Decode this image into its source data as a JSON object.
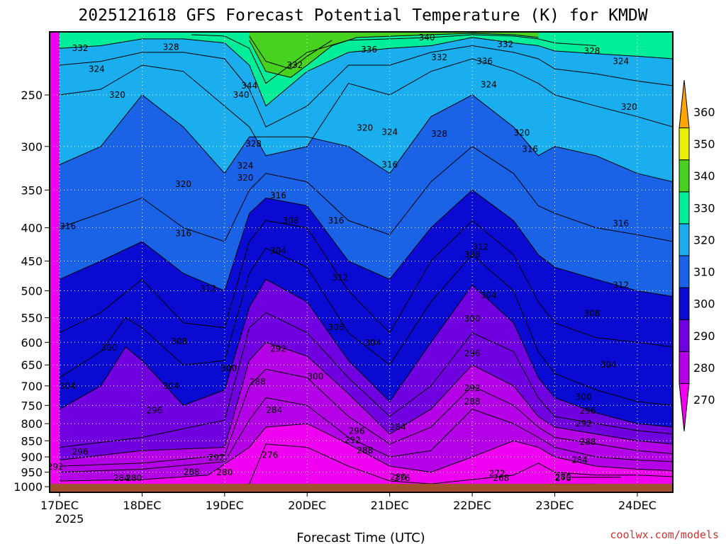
{
  "chart_data": {
    "type": "area",
    "title": "2025121618 GFS Forecast Potential Temperature (K) for KMDW",
    "xlabel": "Forecast Time (UTC)",
    "ylabel": "",
    "credit": "coolwx.com/models",
    "x_ticks": [
      "17DEC",
      "18DEC",
      "19DEC",
      "20DEC",
      "21DEC",
      "22DEC",
      "23DEC",
      "24DEC"
    ],
    "x_year": "2025",
    "x_range": [
      -0.12,
      7.43
    ],
    "y_ticks": [
      250,
      300,
      350,
      400,
      450,
      500,
      550,
      600,
      650,
      700,
      750,
      800,
      850,
      900,
      950,
      1000
    ],
    "y_range_hpa": [
      200,
      1020
    ],
    "y_scale": "log",
    "colorbar": {
      "levels": [
        270,
        280,
        290,
        300,
        310,
        320,
        330,
        340,
        350,
        360
      ],
      "colors": [
        "#f000f0",
        "#b400e6",
        "#7000e0",
        "#0a0ad2",
        "#1a62e6",
        "#1aaeee",
        "#00ee99",
        "#46d21e",
        "#e6f000",
        "#ffa500"
      ],
      "units": "K"
    },
    "surface": {
      "pressure_hpa": 1000,
      "color": "#a0522d"
    },
    "series": [
      {
        "level": 268,
        "x": [
          5.9,
          6.5
        ],
        "y": [
          991,
          991
        ]
      },
      {
        "level": 272,
        "x": [
          6.2,
          6.8
        ],
        "y": [
          967,
          967
        ]
      },
      {
        "level": 276,
        "x": [
          0.0,
          1.0,
          2.0,
          2.3,
          2.5,
          3.0,
          3.5,
          4.0,
          4.5,
          5.0,
          5.5,
          5.8,
          6.0,
          6.5,
          7.0,
          7.43
        ],
        "y": [
          1000,
          1000,
          1000,
          990,
          860,
          870,
          930,
          980,
          990,
          975,
          960,
          920,
          950,
          960,
          960,
          965
        ]
      },
      {
        "level": 280,
        "x": [
          0.0,
          1.0,
          1.8,
          2.3,
          2.5,
          3.0,
          3.5,
          4.0,
          4.5,
          5.0,
          5.5,
          5.8,
          6.0,
          6.5,
          7.0,
          7.43
        ],
        "y": [
          980,
          975,
          960,
          870,
          810,
          800,
          860,
          930,
          950,
          900,
          850,
          870,
          900,
          930,
          940,
          945
        ]
      },
      {
        "level": 284,
        "x": [
          0.0,
          1.0,
          2.0,
          2.3,
          2.5,
          3.0,
          3.5,
          4.0,
          4.5,
          5.0,
          5.5,
          5.8,
          6.0,
          6.5,
          7.0,
          7.43
        ],
        "y": [
          950,
          940,
          915,
          790,
          730,
          750,
          840,
          900,
          880,
          760,
          800,
          840,
          870,
          900,
          910,
          915
        ]
      },
      {
        "level": 288,
        "x": [
          0.0,
          1.0,
          2.0,
          2.3,
          2.5,
          3.0,
          3.5,
          4.0,
          4.5,
          5.0,
          5.5,
          5.8,
          6.0,
          6.5,
          7.0,
          7.43
        ],
        "y": [
          930,
          920,
          895,
          700,
          660,
          680,
          780,
          860,
          810,
          700,
          750,
          810,
          840,
          860,
          880,
          890
        ]
      },
      {
        "level": 292,
        "x": [
          0.0,
          1.0,
          2.0,
          2.3,
          2.5,
          3.0,
          3.5,
          4.0,
          4.5,
          5.0,
          5.5,
          5.8,
          6.0,
          6.5,
          7.0,
          7.43
        ],
        "y": [
          910,
          880,
          870,
          640,
          600,
          630,
          720,
          830,
          760,
          650,
          700,
          780,
          810,
          830,
          850,
          860
        ]
      },
      {
        "level": 296,
        "x": [
          0.0,
          1.0,
          2.0,
          2.3,
          2.5,
          3.0,
          3.5,
          4.0,
          4.5,
          5.0,
          5.5,
          5.8,
          6.0,
          6.5,
          7.0,
          7.43
        ],
        "y": [
          870,
          840,
          790,
          570,
          540,
          580,
          680,
          780,
          700,
          580,
          620,
          730,
          780,
          800,
          820,
          830
        ]
      },
      {
        "level": 300,
        "x": [
          0.0,
          0.5,
          0.8,
          1.0,
          1.5,
          2.0,
          2.3,
          2.5,
          3.0,
          3.5,
          4.0,
          4.5,
          5.0,
          5.5,
          5.8,
          6.0,
          6.5,
          7.0,
          7.43
        ],
        "y": [
          760,
          700,
          610,
          640,
          750,
          710,
          530,
          480,
          520,
          640,
          740,
          600,
          490,
          560,
          680,
          730,
          770,
          800,
          810
        ]
      },
      {
        "level": 304,
        "x": [
          0.0,
          0.5,
          0.8,
          1.0,
          1.5,
          2.0,
          2.3,
          2.5,
          3.0,
          3.5,
          4.0,
          4.5,
          5.0,
          5.5,
          5.8,
          6.0,
          6.5,
          7.0,
          7.43
        ],
        "y": [
          680,
          620,
          550,
          570,
          650,
          640,
          470,
          430,
          460,
          580,
          650,
          520,
          440,
          500,
          620,
          670,
          710,
          740,
          750
        ]
      },
      {
        "level": 308,
        "x": [
          0.0,
          0.5,
          1.0,
          1.5,
          2.0,
          2.3,
          2.5,
          3.0,
          3.5,
          4.0,
          4.5,
          5.0,
          5.5,
          5.8,
          6.0,
          6.5,
          7.0,
          7.43
        ],
        "y": [
          580,
          540,
          480,
          560,
          570,
          420,
          390,
          400,
          500,
          580,
          450,
          390,
          440,
          520,
          560,
          590,
          600,
          610
        ]
      },
      {
        "level": 312,
        "x": [
          0.0,
          0.5,
          1.0,
          1.5,
          2.0,
          2.3,
          2.5,
          3.0,
          3.5,
          4.0,
          4.5,
          5.0,
          5.5,
          5.8,
          6.0,
          6.5,
          7.0,
          7.43
        ],
        "y": [
          480,
          450,
          420,
          470,
          500,
          380,
          360,
          370,
          450,
          480,
          400,
          350,
          390,
          440,
          460,
          480,
          500,
          510
        ]
      },
      {
        "level": 316,
        "x": [
          0.0,
          0.5,
          1.0,
          1.5,
          2.0,
          2.3,
          2.5,
          3.0,
          3.5,
          4.0,
          4.5,
          5.0,
          5.5,
          5.8,
          6.0,
          6.5,
          7.0,
          7.43
        ],
        "y": [
          400,
          380,
          360,
          400,
          420,
          350,
          330,
          340,
          390,
          410,
          340,
          300,
          330,
          370,
          380,
          400,
          410,
          420
        ]
      },
      {
        "level": 320,
        "x": [
          0.0,
          0.5,
          1.0,
          1.5,
          2.0,
          2.3,
          2.5,
          3.0,
          3.5,
          4.0,
          4.5,
          5.0,
          5.5,
          5.8,
          6.0,
          6.5,
          7.0,
          7.43
        ],
        "y": [
          320,
          300,
          250,
          280,
          330,
          290,
          290,
          290,
          300,
          330,
          270,
          250,
          280,
          310,
          300,
          310,
          330,
          340
        ]
      },
      {
        "level": 324,
        "x": [
          0.0,
          0.5,
          1.0,
          1.5,
          2.0,
          2.3,
          2.5,
          3.0,
          3.5,
          4.0,
          4.5,
          5.0,
          5.5,
          5.8,
          6.0,
          6.5,
          7.0,
          7.43
        ],
        "y": [
          250,
          245,
          225,
          230,
          260,
          280,
          310,
          300,
          240,
          250,
          230,
          220,
          230,
          240,
          250,
          260,
          270,
          280
        ]
      },
      {
        "level": 328,
        "x": [
          0.0,
          0.5,
          1.0,
          1.5,
          2.0,
          2.3,
          2.5,
          3.0,
          3.5,
          4.0,
          4.5,
          5.0,
          5.5,
          5.8,
          6.0,
          6.5,
          7.0,
          7.43
        ],
        "y": [
          225,
          222,
          215,
          215,
          220,
          245,
          280,
          260,
          225,
          225,
          215,
          210,
          215,
          220,
          228,
          232,
          238,
          242
        ]
      },
      {
        "level": 332,
        "x": [
          0.0,
          0.5,
          1.0,
          1.5,
          2.0,
          2.3,
          2.5,
          3.0,
          3.5,
          4.0,
          4.5,
          5.0,
          5.5,
          5.8,
          6.0,
          6.5,
          7.0,
          7.43
        ],
        "y": [
          212,
          210,
          205,
          205,
          208,
          225,
          260,
          230,
          215,
          212,
          210,
          204,
          208,
          210,
          214,
          216,
          218,
          220
        ]
      },
      {
        "level": 336,
        "x": [
          1.6,
          2.0,
          2.3,
          2.5,
          3.0,
          3.5,
          4.0,
          4.5,
          5.0,
          5.5,
          5.8,
          6.0,
          6.5
        ],
        "y": [
          202,
          203,
          212,
          240,
          215,
          206,
          205,
          204,
          202,
          203,
          205,
          208,
          210
        ]
      },
      {
        "level": 340,
        "x": [
          2.3,
          2.5,
          2.8,
          3.0,
          3.3,
          3.6,
          4.5,
          5.0,
          5.5,
          5.8
        ],
        "y": [
          206,
          230,
          235,
          225,
          210,
          204,
          202,
          201,
          202,
          204
        ]
      },
      {
        "level": 344,
        "x": [
          2.3,
          2.5,
          2.8,
          3.0,
          3.3
        ],
        "y": [
          203,
          222,
          228,
          218,
          206
        ]
      }
    ],
    "contour_labels": [
      {
        "text": "332",
        "x": 0.25,
        "y": 212
      },
      {
        "text": "328",
        "x": 1.35,
        "y": 211
      },
      {
        "text": "324",
        "x": 0.45,
        "y": 228
      },
      {
        "text": "320",
        "x": 0.7,
        "y": 250
      },
      {
        "text": "344",
        "x": 2.3,
        "y": 242
      },
      {
        "text": "340",
        "x": 2.2,
        "y": 250
      },
      {
        "text": "332",
        "x": 2.85,
        "y": 225
      },
      {
        "text": "336",
        "x": 3.75,
        "y": 213
      },
      {
        "text": "340",
        "x": 4.45,
        "y": 204
      },
      {
        "text": "332",
        "x": 4.6,
        "y": 219
      },
      {
        "text": "336",
        "x": 5.15,
        "y": 222
      },
      {
        "text": "332",
        "x": 5.4,
        "y": 209
      },
      {
        "text": "328",
        "x": 6.45,
        "y": 214
      },
      {
        "text": "324",
        "x": 6.8,
        "y": 222
      },
      {
        "text": "324",
        "x": 5.2,
        "y": 241
      },
      {
        "text": "320",
        "x": 6.9,
        "y": 261
      },
      {
        "text": "320",
        "x": 3.7,
        "y": 281
      },
      {
        "text": "324",
        "x": 4.0,
        "y": 285
      },
      {
        "text": "328",
        "x": 4.6,
        "y": 287
      },
      {
        "text": "320",
        "x": 5.6,
        "y": 286
      },
      {
        "text": "316",
        "x": 5.7,
        "y": 303
      },
      {
        "text": "328",
        "x": 2.35,
        "y": 297
      },
      {
        "text": "324",
        "x": 2.25,
        "y": 321
      },
      {
        "text": "320",
        "x": 2.25,
        "y": 335
      },
      {
        "text": "316",
        "x": 2.65,
        "y": 357
      },
      {
        "text": "316",
        "x": 4.0,
        "y": 320
      },
      {
        "text": "320",
        "x": 1.5,
        "y": 343
      },
      {
        "text": "316",
        "x": 3.35,
        "y": 390
      },
      {
        "text": "316",
        "x": 0.1,
        "y": 398
      },
      {
        "text": "316",
        "x": 1.5,
        "y": 408
      },
      {
        "text": "308",
        "x": 2.8,
        "y": 390
      },
      {
        "text": "304",
        "x": 2.65,
        "y": 434
      },
      {
        "text": "312",
        "x": 5.1,
        "y": 428
      },
      {
        "text": "316",
        "x": 6.8,
        "y": 394
      },
      {
        "text": "308",
        "x": 5.0,
        "y": 440
      },
      {
        "text": "312",
        "x": 3.4,
        "y": 477
      },
      {
        "text": "312",
        "x": 1.8,
        "y": 496
      },
      {
        "text": "312",
        "x": 6.8,
        "y": 490
      },
      {
        "text": "304",
        "x": 5.2,
        "y": 508
      },
      {
        "text": "308",
        "x": 6.45,
        "y": 542
      },
      {
        "text": "300",
        "x": 5.0,
        "y": 552
      },
      {
        "text": "308",
        "x": 3.35,
        "y": 569
      },
      {
        "text": "304",
        "x": 3.8,
        "y": 601
      },
      {
        "text": "308",
        "x": 1.45,
        "y": 598
      },
      {
        "text": "300",
        "x": 0.6,
        "y": 612
      },
      {
        "text": "292",
        "x": 2.65,
        "y": 614
      },
      {
        "text": "296",
        "x": 5.0,
        "y": 624
      },
      {
        "text": "304",
        "x": 6.65,
        "y": 650
      },
      {
        "text": "300",
        "x": 2.05,
        "y": 658
      },
      {
        "text": "288",
        "x": 2.4,
        "y": 690
      },
      {
        "text": "300",
        "x": 3.1,
        "y": 677
      },
      {
        "text": "304",
        "x": 1.35,
        "y": 700
      },
      {
        "text": "304",
        "x": 0.1,
        "y": 700
      },
      {
        "text": "292",
        "x": 5.0,
        "y": 706
      },
      {
        "text": "288",
        "x": 5.0,
        "y": 740
      },
      {
        "text": "300",
        "x": 6.35,
        "y": 728
      },
      {
        "text": "296",
        "x": 6.4,
        "y": 765
      },
      {
        "text": "284",
        "x": 2.6,
        "y": 763
      },
      {
        "text": "284",
        "x": 4.1,
        "y": 810
      },
      {
        "text": "292",
        "x": 6.35,
        "y": 800
      },
      {
        "text": "296",
        "x": 1.15,
        "y": 764
      },
      {
        "text": "296",
        "x": 3.6,
        "y": 821
      },
      {
        "text": "292",
        "x": 3.55,
        "y": 848
      },
      {
        "text": "288",
        "x": 3.7,
        "y": 880
      },
      {
        "text": "288",
        "x": 6.4,
        "y": 854
      },
      {
        "text": "296",
        "x": 0.25,
        "y": 884
      },
      {
        "text": "276",
        "x": 2.55,
        "y": 894
      },
      {
        "text": "292",
        "x": 1.9,
        "y": 902
      },
      {
        "text": "284",
        "x": 6.3,
        "y": 910
      },
      {
        "text": "292",
        "x": -0.05,
        "y": 932
      },
      {
        "text": "288",
        "x": 1.6,
        "y": 950
      },
      {
        "text": "280",
        "x": 2.0,
        "y": 951
      },
      {
        "text": "280",
        "x": 4.1,
        "y": 966
      },
      {
        "text": "272",
        "x": 5.3,
        "y": 954
      },
      {
        "text": "280",
        "x": 6.1,
        "y": 967
      },
      {
        "text": "284",
        "x": 0.75,
        "y": 976
      },
      {
        "text": "276",
        "x": 4.15,
        "y": 994
      },
      {
        "text": "276",
        "x": 6.1,
        "y": 990
      },
      {
        "text": "280",
        "x": 0.9,
        "y": 1000
      },
      {
        "text": "268",
        "x": 5.35,
        "y": 1025
      }
    ],
    "grid": true,
    "legend": "right"
  }
}
